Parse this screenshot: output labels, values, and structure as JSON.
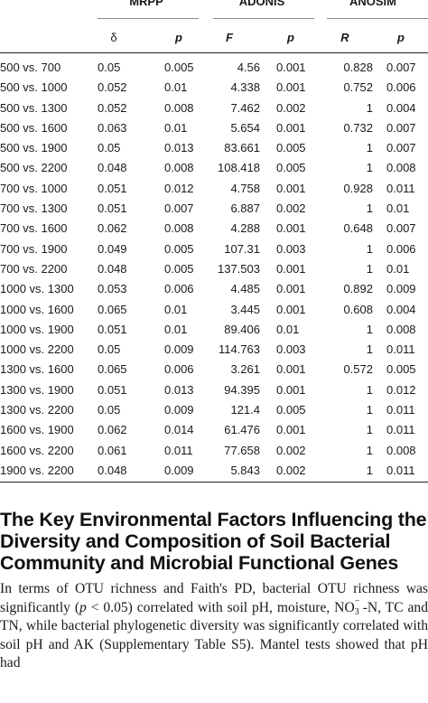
{
  "table": {
    "groups": {
      "mrpp": "MRPP",
      "adonis": "ADONIS",
      "anosim": "ANOSIM"
    },
    "subheaders": {
      "mrpp_delta": "δ",
      "mrpp_p": "p",
      "adonis_f": "F",
      "adonis_p": "p",
      "anosim_r": "R",
      "anosim_p": "p"
    },
    "rows": [
      {
        "label": "500 vs. 700",
        "d": "0.05",
        "p1": "0.005",
        "f": "4.56",
        "p2": "0.001",
        "r": "0.828",
        "p3": "0.007"
      },
      {
        "label": "500 vs. 1000",
        "d": "0.052",
        "p1": "0.01",
        "f": "4.338",
        "p2": "0.001",
        "r": "0.752",
        "p3": "0.006"
      },
      {
        "label": "500 vs. 1300",
        "d": "0.052",
        "p1": "0.008",
        "f": "7.462",
        "p2": "0.002",
        "r": "1",
        "p3": "0.004"
      },
      {
        "label": "500 vs. 1600",
        "d": "0.063",
        "p1": "0.01",
        "f": "5.654",
        "p2": "0.001",
        "r": "0.732",
        "p3": "0.007"
      },
      {
        "label": "500 vs. 1900",
        "d": "0.05",
        "p1": "0.013",
        "f": "83.661",
        "p2": "0.005",
        "r": "1",
        "p3": "0.007"
      },
      {
        "label": "500 vs. 2200",
        "d": "0.048",
        "p1": "0.008",
        "f": "108.418",
        "p2": "0.005",
        "r": "1",
        "p3": "0.008"
      },
      {
        "label": "700 vs. 1000",
        "d": "0.051",
        "p1": "0.012",
        "f": "4.758",
        "p2": "0.001",
        "r": "0.928",
        "p3": "0.011"
      },
      {
        "label": "700 vs. 1300",
        "d": "0.051",
        "p1": "0.007",
        "f": "6.887",
        "p2": "0.002",
        "r": "1",
        "p3": "0.01"
      },
      {
        "label": "700 vs. 1600",
        "d": "0.062",
        "p1": "0.008",
        "f": "4.288",
        "p2": "0.001",
        "r": "0.648",
        "p3": "0.007"
      },
      {
        "label": "700 vs. 1900",
        "d": "0.049",
        "p1": "0.005",
        "f": "107.31",
        "p2": "0.003",
        "r": "1",
        "p3": "0.006"
      },
      {
        "label": "700 vs. 2200",
        "d": "0.048",
        "p1": "0.005",
        "f": "137.503",
        "p2": "0.001",
        "r": "1",
        "p3": "0.01"
      },
      {
        "label": "1000 vs. 1300",
        "d": "0.053",
        "p1": "0.006",
        "f": "4.485",
        "p2": "0.001",
        "r": "0.892",
        "p3": "0.009"
      },
      {
        "label": "1000 vs. 1600",
        "d": "0.065",
        "p1": "0.01",
        "f": "3.445",
        "p2": "0.001",
        "r": "0.608",
        "p3": "0.004"
      },
      {
        "label": "1000 vs. 1900",
        "d": "0.051",
        "p1": "0.01",
        "f": "89.406",
        "p2": "0.01",
        "r": "1",
        "p3": "0.008"
      },
      {
        "label": "1000 vs. 2200",
        "d": "0.05",
        "p1": "0.009",
        "f": "114.763",
        "p2": "0.003",
        "r": "1",
        "p3": "0.011"
      },
      {
        "label": "1300 vs. 1600",
        "d": "0.065",
        "p1": "0.006",
        "f": "3.261",
        "p2": "0.001",
        "r": "0.572",
        "p3": "0.005"
      },
      {
        "label": "1300 vs. 1900",
        "d": "0.051",
        "p1": "0.013",
        "f": "94.395",
        "p2": "0.001",
        "r": "1",
        "p3": "0.012"
      },
      {
        "label": "1300 vs. 2200",
        "d": "0.05",
        "p1": "0.009",
        "f": "121.4",
        "p2": "0.005",
        "r": "1",
        "p3": "0.011"
      },
      {
        "label": "1600 vs. 1900",
        "d": "0.062",
        "p1": "0.014",
        "f": "61.476",
        "p2": "0.001",
        "r": "1",
        "p3": "0.011"
      },
      {
        "label": "1600 vs. 2200",
        "d": "0.061",
        "p1": "0.011",
        "f": "77.658",
        "p2": "0.002",
        "r": "1",
        "p3": "0.008"
      },
      {
        "label": "1900 vs. 2200",
        "d": "0.048",
        "p1": "0.009",
        "f": "5.843",
        "p2": "0.002",
        "r": "1",
        "p3": "0.011"
      }
    ]
  },
  "section": {
    "heading": "The Key Environmental Factors Influencing the Diversity and Composition of Soil Bacterial Community and Microbial Functional Genes",
    "para_1": "In terms of OTU richness and Faith's PD, bacterial OTU richness was significantly (",
    "para_p": "p",
    "para_2": " < 0.05) correlated with soil pH, moisture, NO",
    "no3_sub": "3",
    "no3_sup": "−",
    "para_3": "-N, TC and TN, while bacterial phylogenetic diversity was significantly correlated with soil pH and AK (Supplementary Table S5). Mantel tests showed that pH had"
  }
}
